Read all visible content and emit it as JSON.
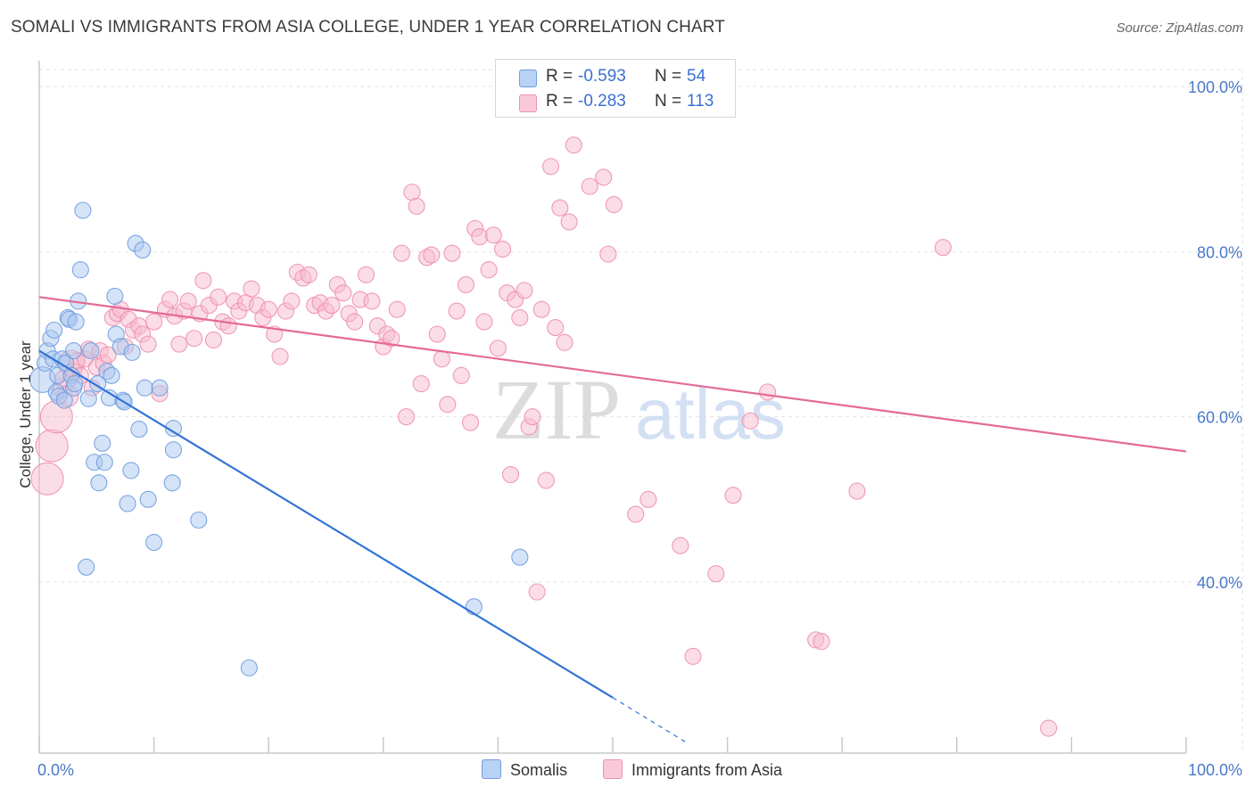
{
  "title": "SOMALI VS IMMIGRANTS FROM ASIA COLLEGE, UNDER 1 YEAR CORRELATION CHART",
  "source": "Source: ZipAtlas.com",
  "watermark": {
    "zip": "ZIP",
    "atlas": "atlas"
  },
  "colors": {
    "somali_fill": "#a9c8f0",
    "somali_stroke": "#6f9de0",
    "somali_line": "#2f72d6",
    "asia_fill": "#f7bcd0",
    "asia_stroke": "#ee8fae",
    "asia_line": "#e46a95",
    "tick_text": "#4a78c9",
    "grid": "#e2e2e2"
  },
  "legend": {
    "rows": [
      {
        "r_label": "R =",
        "r_value": "-0.593",
        "n_label": "N =",
        "n_value": "54"
      },
      {
        "r_label": "R =",
        "r_value": "-0.283",
        "n_label": "N =",
        "n_value": "113"
      }
    ]
  },
  "bottom_legend": {
    "somali": "Somalis",
    "asia": "Immigrants from Asia"
  },
  "chart_data": {
    "type": "scatter",
    "title": "SOMALI VS IMMIGRANTS FROM ASIA COLLEGE, UNDER 1 YEAR CORRELATION CHART",
    "xlabel": "",
    "ylabel": "College, Under 1 year",
    "xlim": [
      0,
      100
    ],
    "ylim": [
      20,
      102
    ],
    "x_tick_labels": [
      "0.0%",
      "100.0%"
    ],
    "y_ticks": [
      40,
      60,
      80,
      100
    ],
    "y_tick_labels": [
      "40.0%",
      "60.0%",
      "80.0%",
      "100.0%"
    ],
    "series": [
      {
        "name": "Somalis",
        "trend": {
          "x0": 0,
          "y0": 68.0,
          "x1": 50,
          "y1": 26.0,
          "dashed_to_x": 56.5,
          "dashed_to_y": 20.5
        },
        "points": [
          [
            0.3,
            64.5,
            1.6
          ],
          [
            0.5,
            66.5,
            1
          ],
          [
            0.7,
            68.0,
            1
          ],
          [
            1.0,
            69.5,
            1
          ],
          [
            1.2,
            67.0,
            1
          ],
          [
            1.3,
            70.5,
            1
          ],
          [
            1.5,
            63.0,
            1
          ],
          [
            1.6,
            65.0,
            1
          ],
          [
            1.7,
            62.5,
            1
          ],
          [
            2.0,
            67.0,
            1
          ],
          [
            2.2,
            62.0,
            1
          ],
          [
            2.3,
            66.5,
            1
          ],
          [
            2.5,
            72.0,
            1
          ],
          [
            2.6,
            71.8,
            1
          ],
          [
            2.8,
            65.0,
            1
          ],
          [
            3.0,
            68.0,
            1
          ],
          [
            3.0,
            63.5,
            1
          ],
          [
            3.1,
            64.0,
            1
          ],
          [
            3.2,
            71.5,
            1
          ],
          [
            3.4,
            74.0,
            1
          ],
          [
            3.6,
            77.8,
            1
          ],
          [
            3.8,
            85.0,
            1
          ],
          [
            4.1,
            41.8,
            1
          ],
          [
            4.3,
            62.2,
            1
          ],
          [
            4.5,
            68.0,
            1
          ],
          [
            4.8,
            54.5,
            1
          ],
          [
            5.1,
            64.0,
            1
          ],
          [
            5.2,
            52.0,
            1
          ],
          [
            5.5,
            56.8,
            1
          ],
          [
            5.7,
            54.5,
            1
          ],
          [
            5.9,
            65.5,
            1
          ],
          [
            6.1,
            62.3,
            1
          ],
          [
            6.3,
            65.0,
            1
          ],
          [
            6.6,
            74.6,
            1
          ],
          [
            6.7,
            70.0,
            1
          ],
          [
            7.1,
            68.5,
            1
          ],
          [
            7.3,
            62.0,
            1
          ],
          [
            7.4,
            61.8,
            1
          ],
          [
            7.7,
            49.5,
            1
          ],
          [
            8.0,
            53.5,
            1
          ],
          [
            8.1,
            67.8,
            1
          ],
          [
            8.4,
            81.0,
            1
          ],
          [
            8.7,
            58.5,
            1
          ],
          [
            9.0,
            80.2,
            1
          ],
          [
            9.2,
            63.5,
            1
          ],
          [
            9.5,
            50.0,
            1
          ],
          [
            10.0,
            44.8,
            1
          ],
          [
            10.5,
            63.5,
            1
          ],
          [
            11.6,
            52.0,
            1
          ],
          [
            11.7,
            58.6,
            1
          ],
          [
            11.7,
            56.0,
            1
          ],
          [
            13.9,
            47.5,
            1
          ],
          [
            18.3,
            29.6,
            1
          ],
          [
            37.9,
            37.0,
            1
          ],
          [
            41.9,
            43.0,
            1
          ]
        ]
      },
      {
        "name": "Immigrants from Asia",
        "trend": {
          "x0": 0,
          "y0": 74.5,
          "x1": 100,
          "y1": 55.8
        },
        "points": [
          [
            0.7,
            52.5,
            2.0
          ],
          [
            1.1,
            56.5,
            2.0
          ],
          [
            1.5,
            60.0,
            2.0
          ],
          [
            2.0,
            63.5,
            1.2
          ],
          [
            2.3,
            64.5,
            1.3
          ],
          [
            2.5,
            62.5,
            1.3
          ],
          [
            2.8,
            66.5,
            1.6
          ],
          [
            3.0,
            65.5,
            1
          ],
          [
            3.3,
            66.8,
            1
          ],
          [
            3.6,
            65.0,
            1
          ],
          [
            4.0,
            67.0,
            1
          ],
          [
            4.3,
            68.2,
            1
          ],
          [
            4.6,
            63.5,
            1
          ],
          [
            5.0,
            66.0,
            1
          ],
          [
            5.3,
            68.0,
            1
          ],
          [
            5.6,
            66.5,
            1
          ],
          [
            6.0,
            67.5,
            1
          ],
          [
            6.4,
            72.0,
            1
          ],
          [
            6.8,
            72.5,
            1
          ],
          [
            7.1,
            73.0,
            1
          ],
          [
            7.5,
            68.5,
            1
          ],
          [
            7.8,
            71.8,
            1
          ],
          [
            8.2,
            70.5,
            1
          ],
          [
            8.7,
            71.0,
            1
          ],
          [
            9.0,
            70.0,
            1
          ],
          [
            9.5,
            68.8,
            1
          ],
          [
            10.0,
            71.5,
            1
          ],
          [
            10.5,
            62.8,
            1
          ],
          [
            11.0,
            73.0,
            1
          ],
          [
            11.4,
            74.2,
            1
          ],
          [
            11.8,
            72.2,
            1
          ],
          [
            12.2,
            68.8,
            1
          ],
          [
            12.6,
            72.8,
            1
          ],
          [
            13.0,
            74.0,
            1
          ],
          [
            13.5,
            69.5,
            1
          ],
          [
            14.0,
            72.5,
            1
          ],
          [
            14.3,
            76.5,
            1
          ],
          [
            14.8,
            73.5,
            1
          ],
          [
            15.2,
            69.3,
            1
          ],
          [
            15.6,
            74.5,
            1
          ],
          [
            16.0,
            71.5,
            1
          ],
          [
            16.5,
            71.0,
            1
          ],
          [
            17.0,
            74.0,
            1
          ],
          [
            17.4,
            72.8,
            1
          ],
          [
            18.0,
            73.8,
            1
          ],
          [
            18.5,
            75.5,
            1
          ],
          [
            19.0,
            73.5,
            1
          ],
          [
            19.5,
            72.0,
            1
          ],
          [
            20.0,
            73.0,
            1
          ],
          [
            20.5,
            70.0,
            1
          ],
          [
            21.0,
            67.3,
            1
          ],
          [
            21.5,
            72.8,
            1
          ],
          [
            22.0,
            74.0,
            1
          ],
          [
            22.5,
            77.5,
            1
          ],
          [
            23.0,
            76.8,
            1
          ],
          [
            23.5,
            77.2,
            1
          ],
          [
            24.0,
            73.5,
            1
          ],
          [
            24.5,
            73.8,
            1
          ],
          [
            25.0,
            72.8,
            1
          ],
          [
            25.5,
            73.5,
            1
          ],
          [
            26.0,
            76.0,
            1
          ],
          [
            26.5,
            75.0,
            1
          ],
          [
            27.0,
            72.5,
            1
          ],
          [
            27.5,
            71.5,
            1
          ],
          [
            28.0,
            74.2,
            1
          ],
          [
            28.5,
            77.2,
            1
          ],
          [
            29.0,
            74.0,
            1
          ],
          [
            29.5,
            71.0,
            1
          ],
          [
            30.0,
            68.5,
            1
          ],
          [
            30.3,
            70.0,
            1
          ],
          [
            30.7,
            69.5,
            1
          ],
          [
            31.2,
            73.0,
            1
          ],
          [
            31.6,
            79.8,
            1
          ],
          [
            32.0,
            60.0,
            1
          ],
          [
            32.5,
            87.2,
            1
          ],
          [
            32.9,
            85.5,
            1
          ],
          [
            33.3,
            64.0,
            1
          ],
          [
            33.8,
            79.3,
            1
          ],
          [
            34.2,
            79.6,
            1
          ],
          [
            34.7,
            70.0,
            1
          ],
          [
            35.1,
            67.0,
            1
          ],
          [
            35.6,
            61.5,
            1
          ],
          [
            36.0,
            79.8,
            1
          ],
          [
            36.4,
            72.8,
            1
          ],
          [
            36.8,
            65.0,
            1
          ],
          [
            37.2,
            76.0,
            1
          ],
          [
            37.6,
            59.3,
            1
          ],
          [
            38.0,
            82.8,
            1
          ],
          [
            38.4,
            81.8,
            1
          ],
          [
            38.8,
            71.5,
            1
          ],
          [
            39.2,
            77.8,
            1
          ],
          [
            39.6,
            82.0,
            1
          ],
          [
            40.0,
            68.3,
            1
          ],
          [
            40.4,
            80.3,
            1
          ],
          [
            40.8,
            75.0,
            1
          ],
          [
            41.1,
            53.0,
            1
          ],
          [
            41.5,
            74.2,
            1
          ],
          [
            41.9,
            72.0,
            1
          ],
          [
            42.3,
            75.3,
            1
          ],
          [
            42.7,
            58.8,
            1
          ],
          [
            43.0,
            60.0,
            1
          ],
          [
            43.4,
            38.8,
            1
          ],
          [
            43.8,
            73.0,
            1
          ],
          [
            44.2,
            52.3,
            1
          ],
          [
            44.6,
            90.3,
            1
          ],
          [
            45.0,
            70.8,
            1
          ],
          [
            45.4,
            85.3,
            1
          ],
          [
            45.8,
            69.0,
            1
          ],
          [
            46.2,
            83.6,
            1
          ],
          [
            46.6,
            92.9,
            1
          ],
          [
            48.0,
            87.9,
            1
          ],
          [
            49.2,
            89.0,
            1
          ],
          [
            49.6,
            79.7,
            1
          ],
          [
            50.1,
            85.7,
            1
          ],
          [
            52.0,
            48.2,
            1
          ],
          [
            53.1,
            50.0,
            1
          ],
          [
            55.9,
            44.4,
            1
          ],
          [
            57.0,
            31.0,
            1
          ],
          [
            59.0,
            41.0,
            1
          ],
          [
            60.5,
            50.5,
            1
          ],
          [
            62.0,
            59.5,
            1
          ],
          [
            63.5,
            63.0,
            1
          ],
          [
            67.7,
            33.0,
            1
          ],
          [
            68.2,
            32.8,
            1
          ],
          [
            71.3,
            51.0,
            1
          ],
          [
            78.8,
            80.5,
            1
          ],
          [
            88.0,
            22.3,
            1
          ]
        ]
      }
    ]
  }
}
